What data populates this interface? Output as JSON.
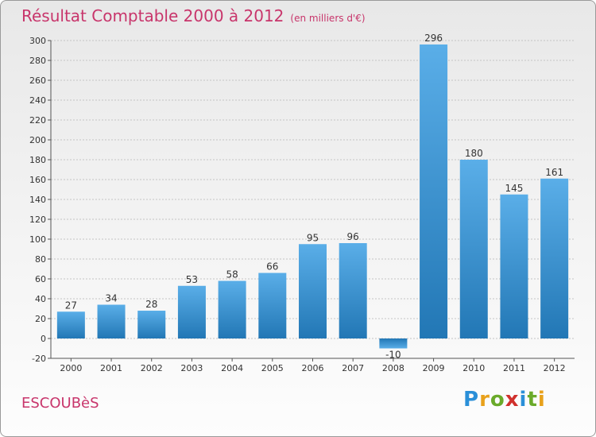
{
  "header": {
    "title": "Résultat Comptable 2000 à 2012",
    "subtitle": "(en milliers d'€)"
  },
  "footer": {
    "town": "ESCOUBèS",
    "logo": [
      "P",
      "r",
      "o",
      "x",
      "i",
      "t",
      "i"
    ]
  },
  "colors": {
    "accent": "#c8356b",
    "bar_light": "#5aaee8",
    "bar_dark": "#2277b5",
    "logo": [
      "#2a8fd8",
      "#e8a11b",
      "#6aaa2a",
      "#d0312d",
      "#2a8fd8",
      "#6aaa2a",
      "#e8a11b"
    ]
  },
  "chart_data": {
    "type": "bar",
    "title": "Résultat Comptable 2000 à 2012",
    "subtitle": "(en milliers d'€)",
    "xlabel": "",
    "ylabel": "",
    "categories": [
      "2000",
      "2001",
      "2002",
      "2003",
      "2004",
      "2005",
      "2006",
      "2007",
      "2008",
      "2009",
      "2010",
      "2011",
      "2012"
    ],
    "values": [
      27,
      34,
      28,
      53,
      58,
      66,
      95,
      96,
      -10,
      296,
      180,
      145,
      161
    ],
    "value_labels": [
      "27",
      "34",
      "28",
      "53",
      "58",
      "66",
      "95",
      "96",
      "-10",
      "296",
      "180",
      "145",
      "161"
    ],
    "ylim": [
      -20,
      300
    ],
    "yticks": [
      -20,
      0,
      20,
      40,
      60,
      80,
      100,
      120,
      140,
      160,
      180,
      200,
      220,
      240,
      260,
      280,
      300
    ],
    "grid": true
  }
}
